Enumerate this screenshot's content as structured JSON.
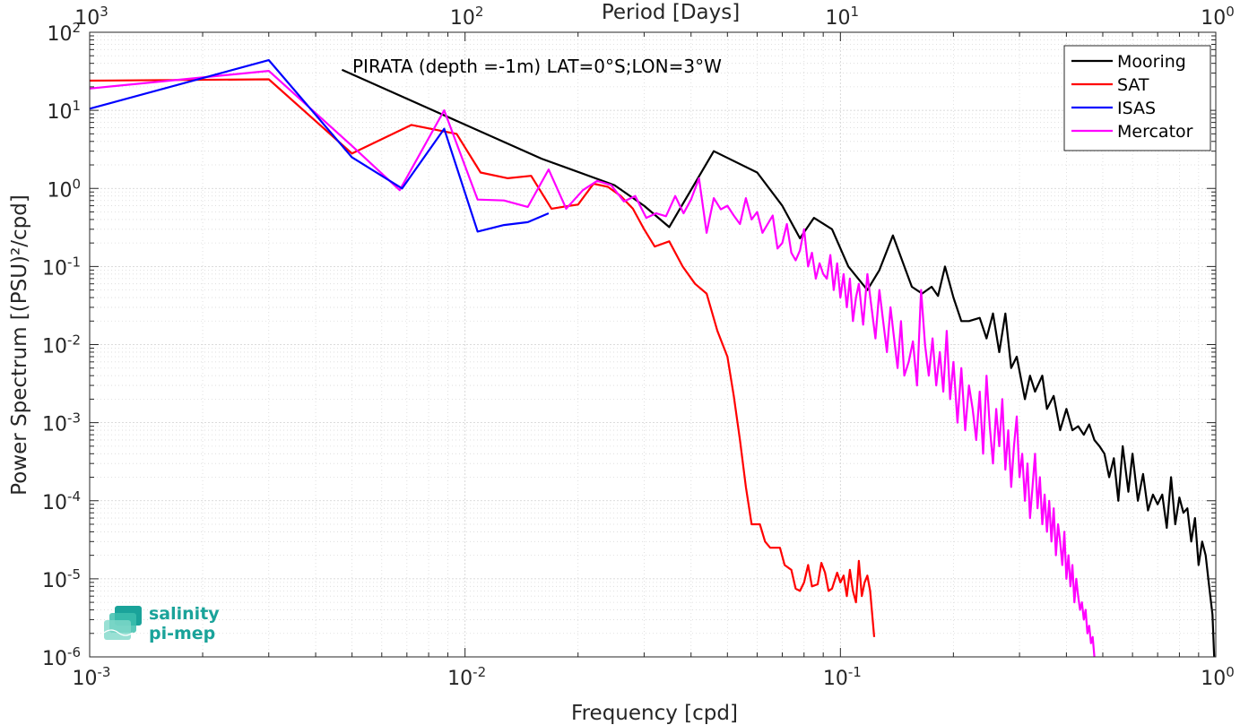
{
  "chart_data": {
    "type": "line",
    "xlabel": "Frequency [cpd]",
    "ylabel": "Power Spectrum [(PSU)²/cpd]",
    "top_axis_label": "Period [Days]",
    "x_scale": "log",
    "y_scale": "log",
    "xlim": [
      0.001,
      1
    ],
    "ylim": [
      1e-06,
      100
    ],
    "grid": true,
    "legend_position": "top-right",
    "x_ticks": [
      {
        "value": 0.001,
        "base": "10",
        "exp": "-3"
      },
      {
        "value": 0.01,
        "base": "10",
        "exp": "-2"
      },
      {
        "value": 0.1,
        "base": "10",
        "exp": "-1"
      },
      {
        "value": 1,
        "base": "10",
        "exp": "0"
      }
    ],
    "top_ticks": [
      {
        "value": 1000,
        "base": "10",
        "exp": "3"
      },
      {
        "value": 100,
        "base": "10",
        "exp": "2"
      },
      {
        "value": 10,
        "base": "10",
        "exp": "1"
      },
      {
        "value": 1,
        "base": "10",
        "exp": "0"
      }
    ],
    "y_ticks": [
      {
        "value": 100,
        "base": "10",
        "exp": "2"
      },
      {
        "value": 10,
        "base": "10",
        "exp": "1"
      },
      {
        "value": 1,
        "base": "10",
        "exp": "0"
      },
      {
        "value": 0.1,
        "base": "10",
        "exp": "-1"
      },
      {
        "value": 0.01,
        "base": "10",
        "exp": "-2"
      },
      {
        "value": 0.001,
        "base": "10",
        "exp": "-3"
      },
      {
        "value": 0.0001,
        "base": "10",
        "exp": "-4"
      },
      {
        "value": 1e-05,
        "base": "10",
        "exp": "-5"
      },
      {
        "value": 1e-06,
        "base": "10",
        "exp": "-6"
      }
    ],
    "annotation": "PIRATA (depth =-1m) LAT=0°S;LON=3°W",
    "series": [
      {
        "name": "Mooring",
        "color": "#000000",
        "points": [
          [
            0.0047,
            33
          ],
          [
            0.016,
            2.4
          ],
          [
            0.025,
            1.1
          ],
          [
            0.03,
            0.6
          ],
          [
            0.035,
            0.32
          ],
          [
            0.046,
            3.0
          ],
          [
            0.06,
            1.6
          ],
          [
            0.07,
            0.6
          ],
          [
            0.078,
            0.23
          ],
          [
            0.085,
            0.42
          ],
          [
            0.095,
            0.3
          ],
          [
            0.105,
            0.1
          ],
          [
            0.118,
            0.05
          ],
          [
            0.127,
            0.09
          ],
          [
            0.138,
            0.25
          ],
          [
            0.155,
            0.055
          ],
          [
            0.165,
            0.045
          ],
          [
            0.175,
            0.055
          ],
          [
            0.182,
            0.042
          ],
          [
            0.19,
            0.1
          ],
          [
            0.2,
            0.04
          ],
          [
            0.21,
            0.02
          ],
          [
            0.22,
            0.02
          ],
          [
            0.235,
            0.022
          ],
          [
            0.245,
            0.012
          ],
          [
            0.255,
            0.025
          ],
          [
            0.265,
            0.008
          ],
          [
            0.275,
            0.025
          ],
          [
            0.285,
            0.005
          ],
          [
            0.295,
            0.007
          ],
          [
            0.31,
            0.002
          ],
          [
            0.32,
            0.004
          ],
          [
            0.33,
            0.0025
          ],
          [
            0.345,
            0.004
          ],
          [
            0.355,
            0.0015
          ],
          [
            0.37,
            0.0022
          ],
          [
            0.385,
            0.0008
          ],
          [
            0.4,
            0.0015
          ],
          [
            0.415,
            0.0008
          ],
          [
            0.43,
            0.0009
          ],
          [
            0.445,
            0.0007
          ],
          [
            0.46,
            0.00095
          ],
          [
            0.475,
            0.0006
          ],
          [
            0.49,
            0.0005
          ],
          [
            0.505,
            0.0004
          ],
          [
            0.52,
            0.0002
          ],
          [
            0.535,
            0.00035
          ],
          [
            0.55,
            0.0001
          ],
          [
            0.565,
            0.0005
          ],
          [
            0.585,
            0.00013
          ],
          [
            0.6,
            0.0004
          ],
          [
            0.62,
            0.0001
          ],
          [
            0.64,
            0.00022
          ],
          [
            0.66,
            7.5e-05
          ],
          [
            0.68,
            0.00012
          ],
          [
            0.7,
            9e-05
          ],
          [
            0.72,
            0.00012
          ],
          [
            0.74,
            4.5e-05
          ],
          [
            0.76,
            0.0002
          ],
          [
            0.78,
            5e-05
          ],
          [
            0.8,
            0.00011
          ],
          [
            0.82,
            7e-05
          ],
          [
            0.84,
            8e-05
          ],
          [
            0.86,
            3e-05
          ],
          [
            0.88,
            6e-05
          ],
          [
            0.9,
            1.5e-05
          ],
          [
            0.92,
            3e-05
          ],
          [
            0.94,
            2e-05
          ],
          [
            0.96,
            8e-06
          ],
          [
            0.98,
            3.5e-06
          ],
          [
            0.99,
            1e-06
          ]
        ]
      },
      {
        "name": "SAT",
        "color": "#ff0000",
        "points": [
          [
            0.001,
            24
          ],
          [
            0.003,
            25
          ],
          [
            0.005,
            2.8
          ],
          [
            0.0072,
            6.5
          ],
          [
            0.0095,
            5.0
          ],
          [
            0.011,
            1.6
          ],
          [
            0.013,
            1.35
          ],
          [
            0.015,
            1.45
          ],
          [
            0.017,
            0.55
          ],
          [
            0.019,
            0.6
          ],
          [
            0.02,
            0.62
          ],
          [
            0.022,
            1.15
          ],
          [
            0.024,
            1.05
          ],
          [
            0.026,
            0.8
          ],
          [
            0.028,
            0.55
          ],
          [
            0.03,
            0.3
          ],
          [
            0.032,
            0.18
          ],
          [
            0.035,
            0.21
          ],
          [
            0.038,
            0.1
          ],
          [
            0.041,
            0.06
          ],
          [
            0.044,
            0.045
          ],
          [
            0.047,
            0.015
          ],
          [
            0.05,
            0.007
          ],
          [
            0.052,
            0.0022
          ],
          [
            0.054,
            0.0006
          ],
          [
            0.056,
            0.00015
          ],
          [
            0.058,
            5e-05
          ],
          [
            0.061,
            5e-05
          ],
          [
            0.063,
            3e-05
          ],
          [
            0.065,
            2.5e-05
          ],
          [
            0.069,
            2.5e-05
          ],
          [
            0.071,
            1.5e-05
          ],
          [
            0.074,
            1.3e-05
          ],
          [
            0.076,
            7.5e-06
          ],
          [
            0.078,
            7e-06
          ],
          [
            0.08,
            9e-06
          ],
          [
            0.082,
            1.5e-05
          ],
          [
            0.084,
            8e-06
          ],
          [
            0.087,
            8.5e-06
          ],
          [
            0.089,
            1.6e-05
          ],
          [
            0.091,
            1.2e-05
          ],
          [
            0.093,
            7e-06
          ],
          [
            0.095,
            7.5e-06
          ],
          [
            0.098,
            1.2e-05
          ],
          [
            0.1,
            9e-06
          ],
          [
            0.102,
            1.1e-05
          ],
          [
            0.104,
            6e-06
          ],
          [
            0.106,
            1.3e-05
          ],
          [
            0.108,
            7e-06
          ],
          [
            0.11,
            5e-06
          ],
          [
            0.112,
            1.7e-05
          ],
          [
            0.114,
            6e-06
          ],
          [
            0.116,
            9e-06
          ],
          [
            0.118,
            1.1e-05
          ],
          [
            0.12,
            7e-06
          ],
          [
            0.123,
            1.8e-06
          ]
        ]
      },
      {
        "name": "ISAS",
        "color": "#0000ff",
        "points": [
          [
            0.001,
            10.5
          ],
          [
            0.003,
            44
          ],
          [
            0.005,
            2.5
          ],
          [
            0.0068,
            1.0
          ],
          [
            0.0088,
            5.8
          ],
          [
            0.0108,
            0.28
          ],
          [
            0.0127,
            0.34
          ],
          [
            0.0147,
            0.37
          ],
          [
            0.0167,
            0.48
          ]
        ]
      },
      {
        "name": "Mercator",
        "color": "#ff00ff",
        "points": [
          [
            0.001,
            19
          ],
          [
            0.003,
            32
          ],
          [
            0.005,
            3.5
          ],
          [
            0.0067,
            0.95
          ],
          [
            0.0088,
            10.0
          ],
          [
            0.0108,
            0.72
          ],
          [
            0.0127,
            0.7
          ],
          [
            0.0147,
            0.58
          ],
          [
            0.0167,
            1.75
          ],
          [
            0.0186,
            0.55
          ],
          [
            0.0206,
            0.95
          ],
          [
            0.0225,
            1.25
          ],
          [
            0.0245,
            1.1
          ],
          [
            0.0265,
            0.68
          ],
          [
            0.0284,
            0.8
          ],
          [
            0.0304,
            0.42
          ],
          [
            0.0323,
            0.48
          ],
          [
            0.0343,
            0.44
          ],
          [
            0.0363,
            0.8
          ],
          [
            0.0382,
            0.48
          ],
          [
            0.04,
            0.72
          ],
          [
            0.042,
            1.35
          ],
          [
            0.044,
            0.27
          ],
          [
            0.046,
            0.75
          ],
          [
            0.048,
            0.54
          ],
          [
            0.05,
            0.6
          ],
          [
            0.052,
            0.45
          ],
          [
            0.054,
            0.35
          ],
          [
            0.056,
            0.75
          ],
          [
            0.058,
            0.4
          ],
          [
            0.06,
            0.5
          ],
          [
            0.062,
            0.27
          ],
          [
            0.064,
            0.35
          ],
          [
            0.066,
            0.45
          ],
          [
            0.068,
            0.17
          ],
          [
            0.07,
            0.2
          ],
          [
            0.072,
            0.35
          ],
          [
            0.074,
            0.15
          ],
          [
            0.076,
            0.12
          ],
          [
            0.078,
            0.16
          ],
          [
            0.08,
            0.3
          ],
          [
            0.082,
            0.1
          ],
          [
            0.084,
            0.15
          ],
          [
            0.086,
            0.07
          ],
          [
            0.088,
            0.11
          ],
          [
            0.09,
            0.08
          ],
          [
            0.092,
            0.07
          ],
          [
            0.094,
            0.14
          ],
          [
            0.096,
            0.05
          ],
          [
            0.098,
            0.11
          ],
          [
            0.1,
            0.04
          ],
          [
            0.102,
            0.08
          ],
          [
            0.104,
            0.03
          ],
          [
            0.106,
            0.07
          ],
          [
            0.108,
            0.02
          ],
          [
            0.11,
            0.04
          ],
          [
            0.112,
            0.06
          ],
          [
            0.115,
            0.018
          ],
          [
            0.118,
            0.08
          ],
          [
            0.121,
            0.03
          ],
          [
            0.124,
            0.012
          ],
          [
            0.127,
            0.05
          ],
          [
            0.13,
            0.02
          ],
          [
            0.133,
            0.008
          ],
          [
            0.136,
            0.03
          ],
          [
            0.139,
            0.012
          ],
          [
            0.142,
            0.005
          ],
          [
            0.145,
            0.02
          ],
          [
            0.148,
            0.004
          ],
          [
            0.152,
            0.006
          ],
          [
            0.156,
            0.011
          ],
          [
            0.16,
            0.003
          ],
          [
            0.164,
            0.05
          ],
          [
            0.168,
            0.01
          ],
          [
            0.172,
            0.004
          ],
          [
            0.176,
            0.012
          ],
          [
            0.18,
            0.003
          ],
          [
            0.184,
            0.008
          ],
          [
            0.188,
            0.0025
          ],
          [
            0.192,
            0.015
          ],
          [
            0.196,
            0.002
          ],
          [
            0.2,
            0.006
          ],
          [
            0.205,
            0.001
          ],
          [
            0.21,
            0.005
          ],
          [
            0.215,
            0.0008
          ],
          [
            0.22,
            0.003
          ],
          [
            0.225,
            0.0015
          ],
          [
            0.23,
            0.0006
          ],
          [
            0.235,
            0.0025
          ],
          [
            0.24,
            0.0004
          ],
          [
            0.245,
            0.004
          ],
          [
            0.25,
            0.0009
          ],
          [
            0.255,
            0.0003
          ],
          [
            0.26,
            0.0015
          ],
          [
            0.265,
            0.0005
          ],
          [
            0.27,
            0.002
          ],
          [
            0.275,
            0.00025
          ],
          [
            0.28,
            0.0008
          ],
          [
            0.285,
            0.00015
          ],
          [
            0.29,
            0.0005
          ],
          [
            0.295,
            0.0012
          ],
          [
            0.3,
            0.0002
          ],
          [
            0.305,
            0.0004
          ],
          [
            0.31,
            0.0001
          ],
          [
            0.315,
            0.0003
          ],
          [
            0.32,
            6e-05
          ],
          [
            0.325,
            0.00015
          ],
          [
            0.33,
            0.0004
          ],
          [
            0.335,
            8e-05
          ],
          [
            0.34,
            0.0002
          ],
          [
            0.345,
            5e-05
          ],
          [
            0.35,
            0.00012
          ],
          [
            0.355,
            4e-05
          ],
          [
            0.36,
            0.0001
          ],
          [
            0.365,
            3e-05
          ],
          [
            0.37,
            8e-05
          ],
          [
            0.375,
            2e-05
          ],
          [
            0.38,
            5e-05
          ],
          [
            0.385,
            3e-05
          ],
          [
            0.39,
            1.5e-05
          ],
          [
            0.395,
            4e-05
          ],
          [
            0.4,
            1e-05
          ],
          [
            0.405,
            2e-05
          ],
          [
            0.41,
            8e-06
          ],
          [
            0.415,
            1.5e-05
          ],
          [
            0.42,
            5e-06
          ],
          [
            0.425,
            1e-05
          ],
          [
            0.43,
            6e-06
          ],
          [
            0.435,
            4e-06
          ],
          [
            0.44,
            5e-06
          ],
          [
            0.445,
            3e-06
          ],
          [
            0.45,
            4e-06
          ],
          [
            0.455,
            2e-06
          ],
          [
            0.46,
            2.5e-06
          ],
          [
            0.465,
            1.5e-06
          ],
          [
            0.47,
            1.8e-06
          ],
          [
            0.475,
            1e-06
          ]
        ]
      }
    ]
  },
  "logo": {
    "line1": "salinity",
    "line2": "pi-mep"
  }
}
